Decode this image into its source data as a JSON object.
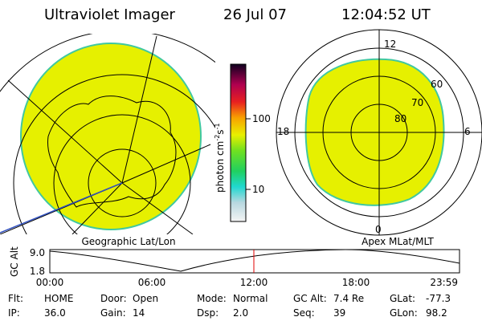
{
  "header": {
    "title": "Ultraviolet Imager",
    "date": "26 Jul 07",
    "time": "12:04:52 UT"
  },
  "colorbar": {
    "unit": "photon cm",
    "unit_exp1": "-2",
    "unit_mid": "s",
    "unit_exp2": "-1",
    "ticks": [
      "100",
      "10"
    ]
  },
  "map": {
    "caption": "Geographic Lat/Lon"
  },
  "polar": {
    "caption": "Apex MLat/MLT",
    "mlt_labels": [
      "12",
      "18",
      "6",
      "0"
    ],
    "lat_labels": [
      "60",
      "70",
      "80"
    ]
  },
  "altitude": {
    "y_label": "GC Alt",
    "yticks": [
      "9.0",
      "1.8"
    ],
    "xticks": [
      "00:00",
      "06:00",
      "12:00",
      "18:00",
      "23:59"
    ]
  },
  "status": [
    [
      {
        "label": "Flt:",
        "value": "HOME"
      },
      {
        "label": "Door:",
        "value": "Open"
      },
      {
        "label": "Mode:",
        "value": "Normal"
      },
      {
        "label": "GC Alt:",
        "value": "7.4 Re"
      },
      {
        "label": "GLat:",
        "value": "-77.3"
      }
    ],
    [
      {
        "label": "IP:",
        "value": "36.0"
      },
      {
        "label": "Gain:",
        "value": "14"
      },
      {
        "label": "Dsp:",
        "value": "2.0"
      },
      {
        "label": "Seq:",
        "value": "39"
      },
      {
        "label": "GLon:",
        "value": "98.2"
      }
    ]
  ]
}
